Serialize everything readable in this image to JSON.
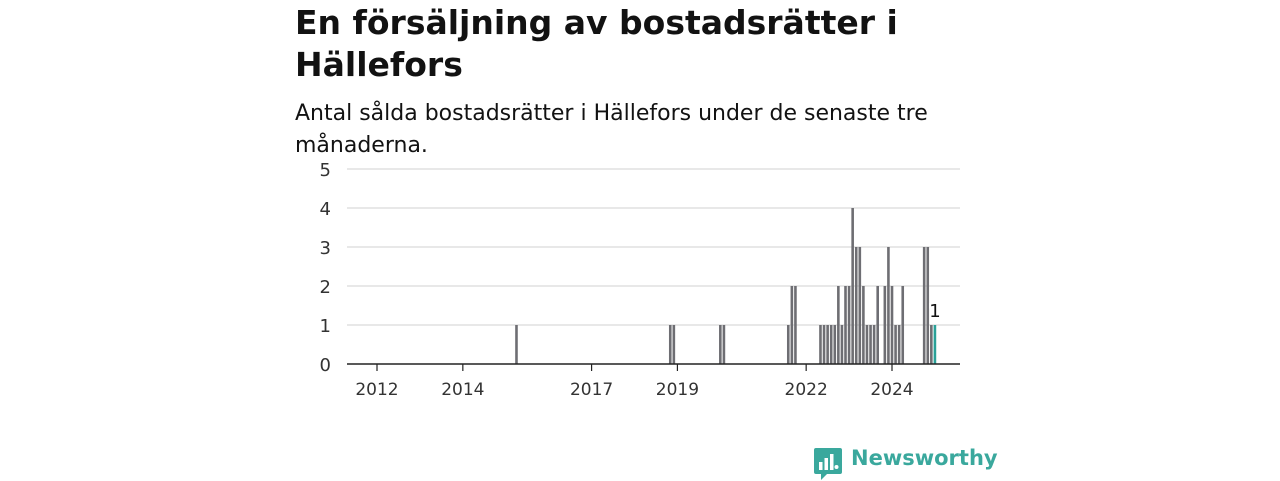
{
  "header": {
    "title": "En försäljning av bostadsrätter i Hällefors",
    "subtitle": "Antal sålda bostadsrätter i Hällefors under de senaste tre månaderna."
  },
  "brand": {
    "name": "Newsworthy",
    "color": "#3aa89d"
  },
  "chart_data": {
    "type": "bar",
    "title": "En försäljning av bostadsrätter i Hällefors",
    "subtitle": "Antal sålda bostadsrätter i Hällefors under de senaste tre månaderna.",
    "xlabel": "",
    "ylabel": "",
    "ylim": [
      0,
      5
    ],
    "yticks": [
      0,
      1,
      2,
      3,
      4,
      5
    ],
    "xticks": [
      "2012",
      "2014",
      "2017",
      "2019",
      "2022",
      "2024"
    ],
    "grid": true,
    "bar_color": "#6e6e73",
    "highlight_color": "#2aa198",
    "series": [
      {
        "x": [
          "2015-04",
          "2018-11",
          "2018-12",
          "2020-01",
          "2020-02",
          "2021-08",
          "2021-09",
          "2021-10",
          "2022-05",
          "2022-06",
          "2022-07",
          "2022-08",
          "2022-09",
          "2022-10",
          "2022-11",
          "2022-12",
          "2023-01",
          "2023-02",
          "2023-03",
          "2023-04",
          "2023-05",
          "2023-06",
          "2023-07",
          "2023-08",
          "2023-09",
          "2023-11",
          "2023-12",
          "2024-01",
          "2024-02",
          "2024-03",
          "2024-04",
          "2024-10",
          "2024-11",
          "2024-12",
          "2025-01"
        ],
        "values": [
          1,
          1,
          1,
          1,
          1,
          1,
          2,
          2,
          1,
          1,
          1,
          1,
          1,
          2,
          1,
          2,
          2,
          4,
          3,
          3,
          2,
          1,
          1,
          1,
          2,
          2,
          3,
          2,
          1,
          1,
          2,
          3,
          3,
          1,
          1
        ]
      }
    ],
    "highlight": {
      "x": "2025-01",
      "value": 1,
      "label": "1"
    }
  }
}
